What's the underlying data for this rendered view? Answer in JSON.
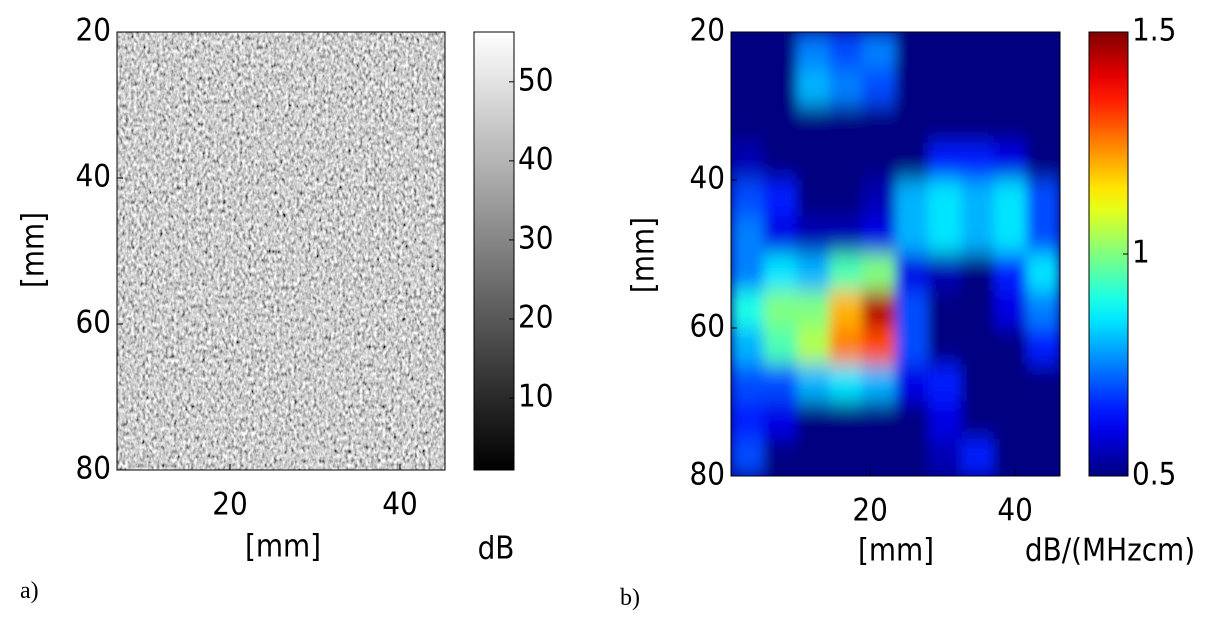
{
  "chart_data": [
    {
      "type": "image",
      "label": "a)",
      "xlabel": "[mm]",
      "ylabel": "[mm]",
      "xlim": [
        6.7,
        45.3
      ],
      "xticks": [
        20,
        40
      ],
      "ylim": [
        20,
        80
      ],
      "yticks": [
        20,
        40,
        60,
        80
      ],
      "yreverse": true,
      "colorbar": {
        "label": "dB",
        "colormap": "gray",
        "lim": [
          0.9,
          56.3
        ],
        "ticks": [
          10,
          20,
          30,
          40,
          50
        ]
      }
    },
    {
      "type": "heatmap",
      "label": "b)",
      "xlabel": "[mm]",
      "ylabel": "[mm]",
      "xlim": [
        0.8,
        46.2
      ],
      "xticks": [
        20,
        40
      ],
      "ylim": [
        20,
        80
      ],
      "yticks": [
        20,
        40,
        60,
        80
      ],
      "yreverse": true,
      "x": [
        3.1,
        7.6,
        12.2,
        16.7,
        21.2,
        25.8,
        30.3,
        34.9,
        39.4,
        43.9
      ],
      "y": [
        22.5,
        27.5,
        32.5,
        37.5,
        42.5,
        47.5,
        52.5,
        57.5,
        62.5,
        67.5,
        72.5,
        77.5
      ],
      "z": [
        [
          0.5,
          0.5,
          0.75,
          0.7,
          0.75,
          0.5,
          0.5,
          0.5,
          0.5,
          0.5
        ],
        [
          0.5,
          0.5,
          0.8,
          0.75,
          0.7,
          0.5,
          0.5,
          0.5,
          0.5,
          0.5
        ],
        [
          0.5,
          0.5,
          0.5,
          0.5,
          0.5,
          0.5,
          0.5,
          0.5,
          0.5,
          0.5
        ],
        [
          0.55,
          0.5,
          0.5,
          0.5,
          0.5,
          0.5,
          0.65,
          0.65,
          0.6,
          0.5
        ],
        [
          0.7,
          0.65,
          0.5,
          0.5,
          0.55,
          0.8,
          0.85,
          0.8,
          0.85,
          0.7
        ],
        [
          0.75,
          0.6,
          0.55,
          0.55,
          0.6,
          0.8,
          0.85,
          0.8,
          0.85,
          0.7
        ],
        [
          0.75,
          0.85,
          0.8,
          0.95,
          1.0,
          0.6,
          0.55,
          0.5,
          0.65,
          0.85
        ],
        [
          0.9,
          1.0,
          1.0,
          1.2,
          1.45,
          0.7,
          0.5,
          0.5,
          0.6,
          0.75
        ],
        [
          0.8,
          0.95,
          1.05,
          1.25,
          1.3,
          0.7,
          0.5,
          0.5,
          0.5,
          0.65
        ],
        [
          0.7,
          0.7,
          0.8,
          0.85,
          0.8,
          0.6,
          0.65,
          0.5,
          0.5,
          0.5
        ],
        [
          0.65,
          0.6,
          0.5,
          0.5,
          0.5,
          0.5,
          0.6,
          0.5,
          0.5,
          0.5
        ],
        [
          0.7,
          0.5,
          0.5,
          0.5,
          0.5,
          0.5,
          0.55,
          0.65,
          0.5,
          0.5
        ]
      ],
      "colorbar": {
        "label": "dB/(MHzcm)",
        "colormap": "jet",
        "lim": [
          0.5,
          1.5
        ],
        "ticks": [
          0.5,
          1,
          1.5
        ]
      }
    }
  ]
}
